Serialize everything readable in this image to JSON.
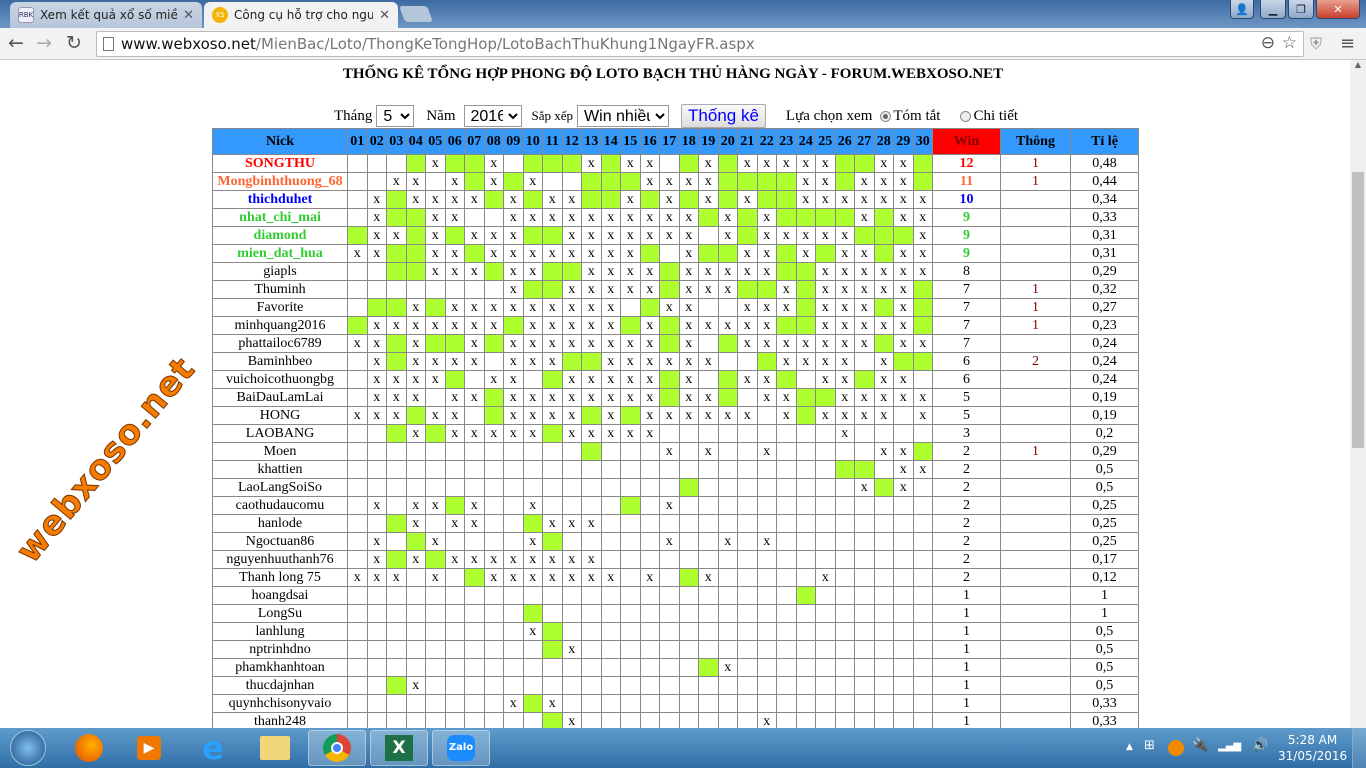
{
  "browser": {
    "tabs": [
      {
        "title": "Xem kết quả xổ số miền B",
        "favicon": "RBK"
      },
      {
        "title": "Công cụ hỗ trợ cho người",
        "favicon": "XS"
      }
    ],
    "url_host": "www.webxoso.net",
    "url_path": "/MienBac/Loto/ThongKeTongHop/LotoBachThuKhung1NgayFR.aspx"
  },
  "page": {
    "title": "THỐNG KÊ TỔNG HỢP PHONG ĐỘ LOTO BẠCH THỦ HÀNG NGÀY - FORUM.WEBXOSO.NET",
    "watermark": "webxoso.net",
    "controls": {
      "month_label": "Tháng",
      "month_value": "5",
      "year_label": "Năm",
      "year_value": "2016",
      "sort_label": "Sắp xếp",
      "sort_value": "Win nhiều",
      "submit_label": "Thống kê",
      "view_label": "Lựa chọn xem",
      "view_options": [
        {
          "label": "Tóm tắt",
          "selected": true
        },
        {
          "label": "Chi tiết",
          "selected": false
        }
      ]
    }
  },
  "table": {
    "headers": {
      "nick": "Nick",
      "win": "Win",
      "thong": "Thông",
      "ratio": "Tỉ lệ"
    },
    "days": [
      "01",
      "02",
      "03",
      "04",
      "05",
      "06",
      "07",
      "08",
      "09",
      "10",
      "11",
      "12",
      "13",
      "14",
      "15",
      "16",
      "17",
      "18",
      "19",
      "20",
      "21",
      "22",
      "23",
      "24",
      "25",
      "26",
      "27",
      "28",
      "29",
      "30"
    ],
    "miss_mark": "x",
    "colors": {
      "win_cell": "#adff2f",
      "header": "#3399ff",
      "win_header": "#ff0000"
    },
    "rows": [
      {
        "nick": "SONGTHU",
        "cells": "...gxggx.gggxgxx.gxgxxxxxggxxg",
        "win": "12",
        "thong": "1",
        "ratio": "0,48",
        "color": "#ff0000",
        "bold": true
      },
      {
        "nick": "Mongbinhthuong_68",
        "cells": "..xx.xgxgx..gggxxxxggggxxgxxxg",
        "win": "11",
        "thong": "1",
        "ratio": "0,44",
        "color": "#ff6633",
        "bold": true
      },
      {
        "nick": "thichduhet",
        "cells": ".xgxxxxgxgxxggxgxgxgxggxxxxxxx",
        "win": "10",
        "thong": "",
        "ratio": "0,34",
        "color": "#0000ff",
        "bold": true
      },
      {
        "nick": "nhat_chi_mai",
        "cells": ".xggxx..xxxxxxxxxxgxgxggggxgxx",
        "win": "9",
        "thong": "",
        "ratio": "0,33",
        "color": "#33cc33",
        "bold": true
      },
      {
        "nick": "diamond",
        "cells": "gxxgxgxxxggxxxxxxx.xgxxxxxgggx",
        "win": "9",
        "thong": "",
        "ratio": "0,31",
        "color": "#33cc33",
        "bold": true
      },
      {
        "nick": "mien_dat_hua",
        "cells": "xxggxxgxxxxxxxxg.xggxxgxgxxgxx",
        "win": "9",
        "thong": "",
        "ratio": "0,31",
        "color": "#33cc33",
        "bold": true
      },
      {
        "nick": "giapls",
        "cells": "..ggxxxgxxggxxxxgxxxxxggxxxxxx",
        "win": "8",
        "thong": "",
        "ratio": "0,29"
      },
      {
        "nick": "Thuminh",
        "cells": "........xggxxxxxgxxxggxgxxxxxg",
        "win": "7",
        "thong": "1",
        "ratio": "0,32"
      },
      {
        "nick": "Favorite",
        "cells": ".ggxgxxxxxxxxx.gxx..xxxgxxxgxg",
        "win": "7",
        "thong": "1",
        "ratio": "0,27"
      },
      {
        "nick": "minhquang2016",
        "cells": "gxxxxxxxgxxxxxgxgxxxxxggxxxxxg",
        "win": "7",
        "thong": "1",
        "ratio": "0,23"
      },
      {
        "nick": "phattailoc6789",
        "cells": "xxgxggxgxxxxxxxxgx.gxxxxxxxgxx",
        "win": "7",
        "thong": "",
        "ratio": "0,24"
      },
      {
        "nick": "Baminhbeo",
        "cells": ".xgxxxx.xxxggxxxxxx..gxxxx.xgg",
        "win": "6",
        "thong": "2",
        "ratio": "0,24"
      },
      {
        "nick": "vuichoicothuongbg",
        "cells": ".xxxxg.xx.gxxxxxgx.gxxg.xxgxx.",
        "win": "6",
        "thong": "",
        "ratio": "0,24"
      },
      {
        "nick": "BaiDauLamLai",
        "cells": ".xxx.xxgxxxxxxxxgxxg.xxggxxxxx",
        "win": "5",
        "thong": "",
        "ratio": "0,19"
      },
      {
        "nick": "HONG",
        "cells": "xxxgxx.gxxxxgxgxxxxxx.xgxxxx.x",
        "win": "5",
        "thong": "",
        "ratio": "0,19"
      },
      {
        "nick": "LAOBANG",
        "cells": "..gxgxxxxxgxxxxx.........x....",
        "win": "3",
        "thong": "",
        "ratio": "0,2"
      },
      {
        "nick": "Moen",
        "cells": "............g...x.x..x.....xxg",
        "win": "2",
        "thong": "1",
        "ratio": "0,29"
      },
      {
        "nick": "khattien",
        "cells": ".........................gg.xx",
        "win": "2",
        "thong": "",
        "ratio": "0,5"
      },
      {
        "nick": "LaoLangSoiSo",
        "cells": ".................g........xgx.",
        "win": "2",
        "thong": "",
        "ratio": "0,5"
      },
      {
        "nick": "caothudaucomu",
        "cells": ".x.xxgx..x....g.x.............",
        "win": "2",
        "thong": "",
        "ratio": "0,25"
      },
      {
        "nick": "hanlode",
        "cells": "..gx.xx..gxxx..................",
        "win": "2",
        "thong": "",
        "ratio": "0,25"
      },
      {
        "nick": "Ngoctuan86",
        "cells": ".x.gx....xg.....x..x.x........",
        "win": "2",
        "thong": "",
        "ratio": "0,25"
      },
      {
        "nick": "nguyenhuuthanh76",
        "cells": ".xgxgxxxxxxxx.................",
        "win": "2",
        "thong": "",
        "ratio": "0,17"
      },
      {
        "nick": "Thanh long 75",
        "cells": "xxx.x.gxxxxxxx.x.gx.....x.....",
        "win": "2",
        "thong": "",
        "ratio": "0,12"
      },
      {
        "nick": "hoangdsai",
        "cells": ".......................g......",
        "win": "1",
        "thong": "",
        "ratio": "1"
      },
      {
        "nick": "LongSu",
        "cells": ".........g....................",
        "win": "1",
        "thong": "",
        "ratio": "1"
      },
      {
        "nick": "lanhlung",
        "cells": ".........xg...................",
        "win": "1",
        "thong": "",
        "ratio": "0,5"
      },
      {
        "nick": "nptrinhdno",
        "cells": "..........gx..................",
        "win": "1",
        "thong": "",
        "ratio": "0,5"
      },
      {
        "nick": "phamkhanhtoan",
        "cells": "..................gx..........",
        "win": "1",
        "thong": "",
        "ratio": "0,5"
      },
      {
        "nick": "thucdajnhan",
        "cells": "..gx..........................",
        "win": "1",
        "thong": "",
        "ratio": "0,5"
      },
      {
        "nick": "quynhchisonyvaio",
        "cells": "........xgx...................",
        "win": "1",
        "thong": "",
        "ratio": "0,33"
      },
      {
        "nick": "thanh248",
        "cells": "..........gx.........x........",
        "win": "1",
        "thong": "",
        "ratio": "0,33"
      }
    ]
  },
  "taskbar": {
    "apps": [
      "firefox-icon",
      "media-player-icon",
      "internet-explorer-icon",
      "file-explorer-icon",
      "chrome-icon",
      "excel-icon",
      "zalo-icon"
    ],
    "zalo_label": "Zalo",
    "time": "5:28 AM",
    "date": "31/05/2016"
  }
}
